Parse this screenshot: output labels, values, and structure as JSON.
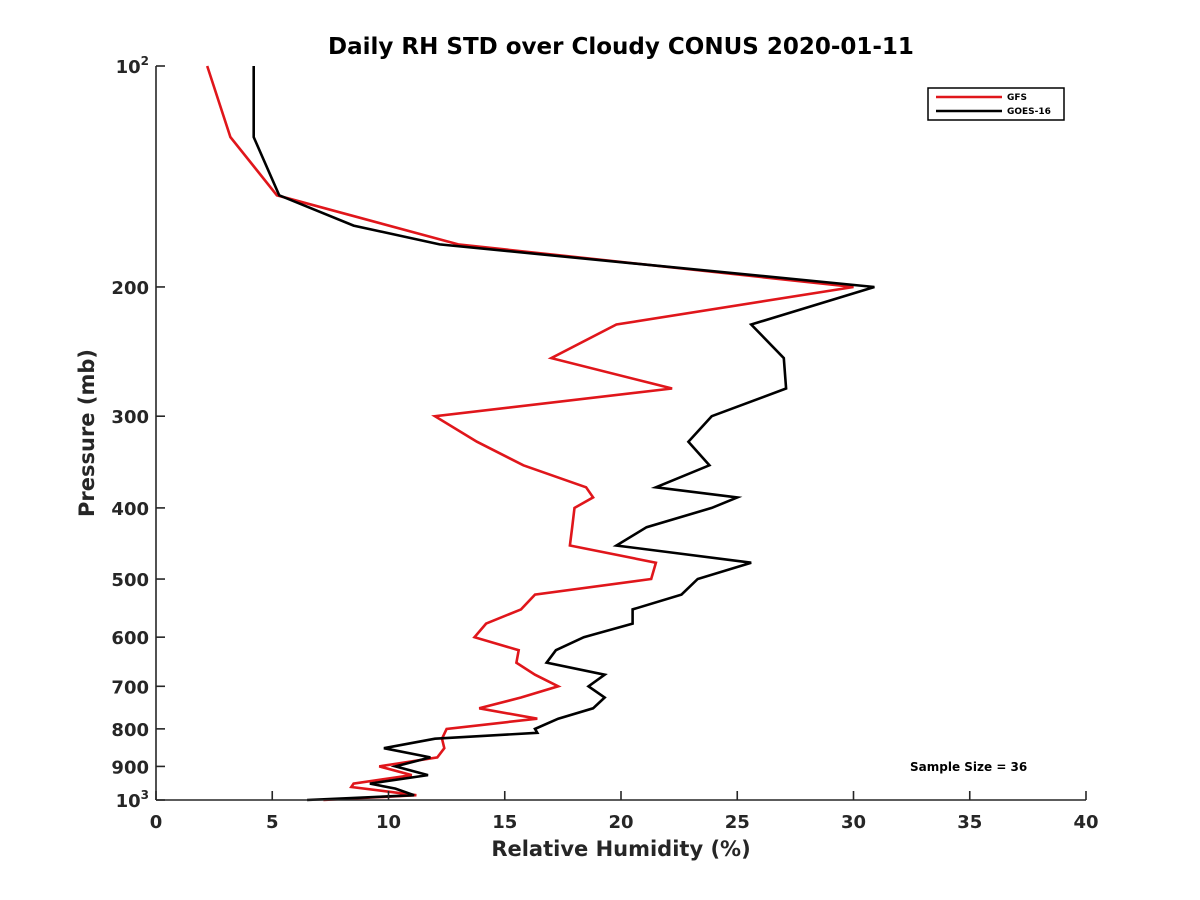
{
  "chart_data": {
    "type": "line",
    "title": "Daily RH STD over Cloudy CONUS 2020-01-11",
    "xlabel": "Relative Humidity (%)",
    "ylabel": "Pressure (mb)",
    "xlim": [
      0,
      40
    ],
    "ylim": [
      100,
      1000
    ],
    "y_scale": "log",
    "y_reversed": true,
    "grid": false,
    "legend_position": "top-right",
    "x_ticks": [
      "0",
      "5",
      "10",
      "15",
      "20",
      "25",
      "30",
      "35",
      "40"
    ],
    "x_tick_values": [
      0,
      5,
      10,
      15,
      20,
      25,
      30,
      35,
      40
    ],
    "y_ticks": [
      {
        "value": 100,
        "base": "10",
        "exp": "2"
      },
      {
        "value": 200,
        "base": "200",
        "exp": ""
      },
      {
        "value": 300,
        "base": "300",
        "exp": ""
      },
      {
        "value": 400,
        "base": "400",
        "exp": ""
      },
      {
        "value": 500,
        "base": "500",
        "exp": ""
      },
      {
        "value": 600,
        "base": "600",
        "exp": ""
      },
      {
        "value": 700,
        "base": "700",
        "exp": ""
      },
      {
        "value": 800,
        "base": "800",
        "exp": ""
      },
      {
        "value": 900,
        "base": "900",
        "exp": ""
      },
      {
        "value": 1000,
        "base": "10",
        "exp": "3"
      }
    ],
    "annotation": "Sample Size = 36",
    "series": [
      {
        "name": "GFS",
        "color": "#e0161b",
        "points": [
          [
            2.2,
            100
          ],
          [
            3.2,
            125
          ],
          [
            5.2,
            150
          ],
          [
            13.0,
            175
          ],
          [
            30.0,
            200
          ],
          [
            19.8,
            225
          ],
          [
            17.0,
            250
          ],
          [
            22.2,
            275
          ],
          [
            12.0,
            300
          ],
          [
            13.8,
            325
          ],
          [
            15.8,
            350
          ],
          [
            18.5,
            375
          ],
          [
            18.8,
            387
          ],
          [
            18.0,
            400
          ],
          [
            17.9,
            425
          ],
          [
            17.8,
            450
          ],
          [
            21.5,
            475
          ],
          [
            21.3,
            500
          ],
          [
            16.3,
            525
          ],
          [
            15.7,
            550
          ],
          [
            14.2,
            575
          ],
          [
            13.7,
            600
          ],
          [
            15.6,
            625
          ],
          [
            15.5,
            650
          ],
          [
            16.3,
            675
          ],
          [
            17.3,
            700
          ],
          [
            15.7,
            725
          ],
          [
            13.9,
            750
          ],
          [
            16.4,
            775
          ],
          [
            12.5,
            800
          ],
          [
            12.3,
            825
          ],
          [
            12.4,
            850
          ],
          [
            12.1,
            875
          ],
          [
            9.6,
            900
          ],
          [
            11.0,
            925
          ],
          [
            8.5,
            950
          ],
          [
            8.4,
            960
          ],
          [
            11.2,
            985
          ],
          [
            7.2,
            1000
          ]
        ]
      },
      {
        "name": "GOES-16",
        "color": "#000000",
        "points": [
          [
            4.2,
            100
          ],
          [
            4.2,
            125
          ],
          [
            5.3,
            150
          ],
          [
            8.5,
            165
          ],
          [
            12.2,
            175
          ],
          [
            30.9,
            200
          ],
          [
            25.6,
            225
          ],
          [
            27.0,
            250
          ],
          [
            27.1,
            275
          ],
          [
            23.9,
            300
          ],
          [
            22.9,
            325
          ],
          [
            23.8,
            350
          ],
          [
            21.5,
            375
          ],
          [
            25.0,
            387
          ],
          [
            23.9,
            400
          ],
          [
            21.1,
            425
          ],
          [
            19.8,
            450
          ],
          [
            25.6,
            475
          ],
          [
            23.3,
            500
          ],
          [
            22.6,
            525
          ],
          [
            20.5,
            550
          ],
          [
            20.5,
            575
          ],
          [
            18.4,
            600
          ],
          [
            17.2,
            625
          ],
          [
            16.8,
            650
          ],
          [
            19.3,
            675
          ],
          [
            18.6,
            700
          ],
          [
            19.3,
            725
          ],
          [
            18.8,
            750
          ],
          [
            17.3,
            775
          ],
          [
            16.3,
            800
          ],
          [
            16.4,
            810
          ],
          [
            12.0,
            825
          ],
          [
            9.8,
            850
          ],
          [
            11.8,
            875
          ],
          [
            10.3,
            900
          ],
          [
            11.7,
            925
          ],
          [
            9.2,
            950
          ],
          [
            10.3,
            965
          ],
          [
            11.1,
            985
          ],
          [
            6.5,
            1000
          ]
        ]
      }
    ]
  }
}
